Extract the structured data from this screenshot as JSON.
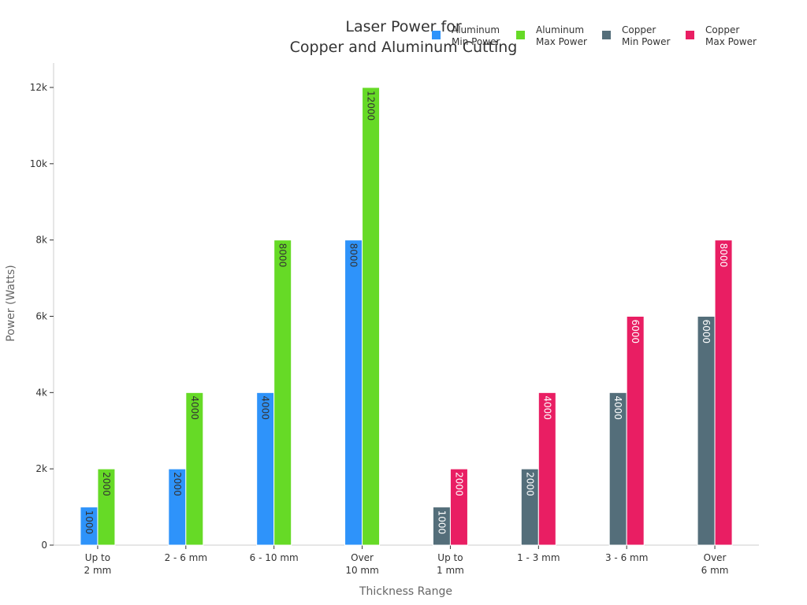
{
  "chart_data": {
    "type": "bar",
    "title": [
      "Laser Power for",
      "Copper and Aluminum Cutting"
    ],
    "xlabel": "Thickness Range",
    "ylabel": "Power (Watts)",
    "categories": [
      [
        "Up to",
        "2 mm"
      ],
      [
        "2 - 6 mm"
      ],
      [
        "6 - 10 mm"
      ],
      [
        "Over",
        "10 mm"
      ],
      [
        "Up to",
        "1 mm"
      ],
      [
        "1 - 3 mm"
      ],
      [
        "3 - 6 mm"
      ],
      [
        "Over",
        "6 mm"
      ]
    ],
    "ylim": [
      0,
      12000
    ],
    "yticks": [
      0,
      2000,
      4000,
      6000,
      8000,
      10000,
      12000
    ],
    "ytick_labels": [
      "0",
      "2k",
      "4k",
      "6k",
      "8k",
      "10k",
      "12k"
    ],
    "legend_position": "top-right",
    "grid": false,
    "series": [
      {
        "name": [
          "Aluminum",
          "Min Power"
        ],
        "color": "#2E93FA",
        "label_color": "#333333",
        "values": [
          1000,
          2000,
          4000,
          8000,
          null,
          null,
          null,
          null
        ]
      },
      {
        "name": [
          "Aluminum",
          "Max Power"
        ],
        "color": "#66DA26",
        "label_color": "#333333",
        "values": [
          2000,
          4000,
          8000,
          12000,
          null,
          null,
          null,
          null
        ]
      },
      {
        "name": [
          "Copper",
          "Min Power"
        ],
        "color": "#546E7A",
        "label_color": "#ffffff",
        "values": [
          null,
          null,
          null,
          null,
          1000,
          2000,
          4000,
          6000
        ]
      },
      {
        "name": [
          "Copper",
          "Max Power"
        ],
        "color": "#E91E63",
        "label_color": "#ffffff",
        "values": [
          null,
          null,
          null,
          null,
          2000,
          4000,
          6000,
          8000
        ]
      }
    ]
  }
}
